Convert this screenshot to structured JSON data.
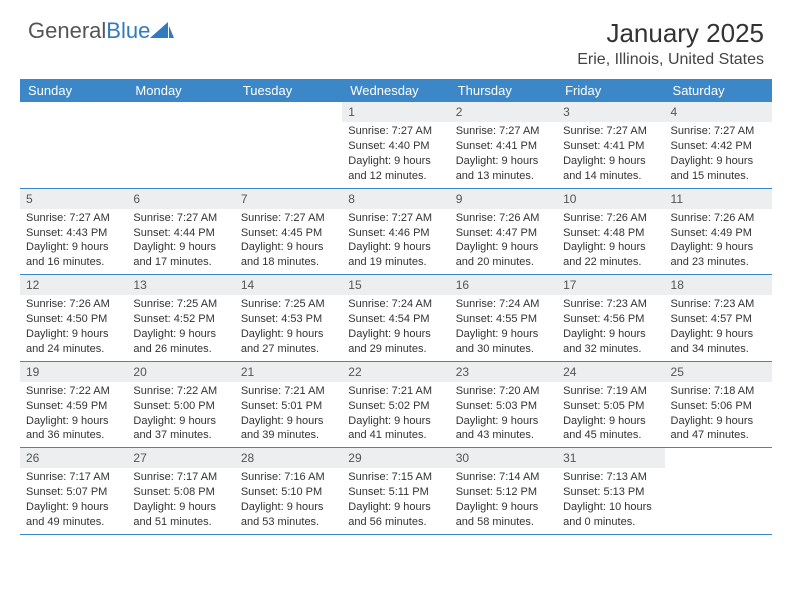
{
  "colors": {
    "header_bar": "#3b87c8",
    "day_header_bg": "#eceeef",
    "week_divider": "#3b87c8",
    "text": "#333333",
    "logo_grey": "#555555",
    "logo_blue": "#2f7ac0",
    "background": "#ffffff"
  },
  "logo": {
    "word1": "General",
    "word2": "Blue"
  },
  "title": "January 2025",
  "location": "Erie, Illinois, United States",
  "dow": [
    "Sunday",
    "Monday",
    "Tuesday",
    "Wednesday",
    "Thursday",
    "Friday",
    "Saturday"
  ],
  "weeks": [
    [
      null,
      null,
      null,
      {
        "n": "1",
        "sr": "7:27 AM",
        "ss": "4:40 PM",
        "dl": "9 hours and 12 minutes."
      },
      {
        "n": "2",
        "sr": "7:27 AM",
        "ss": "4:41 PM",
        "dl": "9 hours and 13 minutes."
      },
      {
        "n": "3",
        "sr": "7:27 AM",
        "ss": "4:41 PM",
        "dl": "9 hours and 14 minutes."
      },
      {
        "n": "4",
        "sr": "7:27 AM",
        "ss": "4:42 PM",
        "dl": "9 hours and 15 minutes."
      }
    ],
    [
      {
        "n": "5",
        "sr": "7:27 AM",
        "ss": "4:43 PM",
        "dl": "9 hours and 16 minutes."
      },
      {
        "n": "6",
        "sr": "7:27 AM",
        "ss": "4:44 PM",
        "dl": "9 hours and 17 minutes."
      },
      {
        "n": "7",
        "sr": "7:27 AM",
        "ss": "4:45 PM",
        "dl": "9 hours and 18 minutes."
      },
      {
        "n": "8",
        "sr": "7:27 AM",
        "ss": "4:46 PM",
        "dl": "9 hours and 19 minutes."
      },
      {
        "n": "9",
        "sr": "7:26 AM",
        "ss": "4:47 PM",
        "dl": "9 hours and 20 minutes."
      },
      {
        "n": "10",
        "sr": "7:26 AM",
        "ss": "4:48 PM",
        "dl": "9 hours and 22 minutes."
      },
      {
        "n": "11",
        "sr": "7:26 AM",
        "ss": "4:49 PM",
        "dl": "9 hours and 23 minutes."
      }
    ],
    [
      {
        "n": "12",
        "sr": "7:26 AM",
        "ss": "4:50 PM",
        "dl": "9 hours and 24 minutes."
      },
      {
        "n": "13",
        "sr": "7:25 AM",
        "ss": "4:52 PM",
        "dl": "9 hours and 26 minutes."
      },
      {
        "n": "14",
        "sr": "7:25 AM",
        "ss": "4:53 PM",
        "dl": "9 hours and 27 minutes."
      },
      {
        "n": "15",
        "sr": "7:24 AM",
        "ss": "4:54 PM",
        "dl": "9 hours and 29 minutes."
      },
      {
        "n": "16",
        "sr": "7:24 AM",
        "ss": "4:55 PM",
        "dl": "9 hours and 30 minutes."
      },
      {
        "n": "17",
        "sr": "7:23 AM",
        "ss": "4:56 PM",
        "dl": "9 hours and 32 minutes."
      },
      {
        "n": "18",
        "sr": "7:23 AM",
        "ss": "4:57 PM",
        "dl": "9 hours and 34 minutes."
      }
    ],
    [
      {
        "n": "19",
        "sr": "7:22 AM",
        "ss": "4:59 PM",
        "dl": "9 hours and 36 minutes."
      },
      {
        "n": "20",
        "sr": "7:22 AM",
        "ss": "5:00 PM",
        "dl": "9 hours and 37 minutes."
      },
      {
        "n": "21",
        "sr": "7:21 AM",
        "ss": "5:01 PM",
        "dl": "9 hours and 39 minutes."
      },
      {
        "n": "22",
        "sr": "7:21 AM",
        "ss": "5:02 PM",
        "dl": "9 hours and 41 minutes."
      },
      {
        "n": "23",
        "sr": "7:20 AM",
        "ss": "5:03 PM",
        "dl": "9 hours and 43 minutes."
      },
      {
        "n": "24",
        "sr": "7:19 AM",
        "ss": "5:05 PM",
        "dl": "9 hours and 45 minutes."
      },
      {
        "n": "25",
        "sr": "7:18 AM",
        "ss": "5:06 PM",
        "dl": "9 hours and 47 minutes."
      }
    ],
    [
      {
        "n": "26",
        "sr": "7:17 AM",
        "ss": "5:07 PM",
        "dl": "9 hours and 49 minutes."
      },
      {
        "n": "27",
        "sr": "7:17 AM",
        "ss": "5:08 PM",
        "dl": "9 hours and 51 minutes."
      },
      {
        "n": "28",
        "sr": "7:16 AM",
        "ss": "5:10 PM",
        "dl": "9 hours and 53 minutes."
      },
      {
        "n": "29",
        "sr": "7:15 AM",
        "ss": "5:11 PM",
        "dl": "9 hours and 56 minutes."
      },
      {
        "n": "30",
        "sr": "7:14 AM",
        "ss": "5:12 PM",
        "dl": "9 hours and 58 minutes."
      },
      {
        "n": "31",
        "sr": "7:13 AM",
        "ss": "5:13 PM",
        "dl": "10 hours and 0 minutes."
      },
      null
    ]
  ],
  "labels": {
    "sunrise": "Sunrise:",
    "sunset": "Sunset:",
    "daylight": "Daylight:"
  }
}
